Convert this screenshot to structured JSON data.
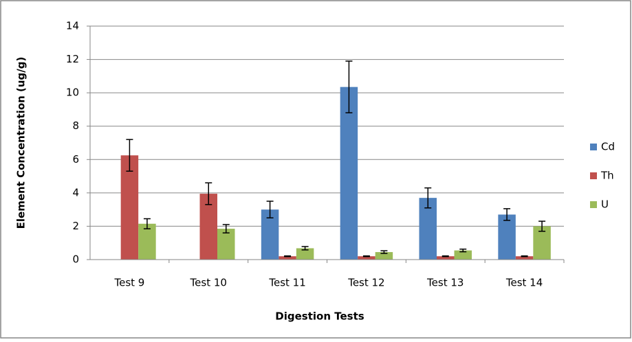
{
  "chart_data": {
    "type": "bar",
    "y_label": "Element Concentration (ug/g)",
    "x_label": "Digestion Tests",
    "categories": [
      "Test 9",
      "Test 10",
      "Test 11",
      "Test 12",
      "Test 13",
      "Test 14"
    ],
    "series": [
      {
        "name": "Cd",
        "color": "#4f81bd",
        "values": [
          null,
          null,
          3.0,
          10.35,
          3.7,
          2.7
        ],
        "errors": [
          null,
          null,
          0.5,
          1.55,
          0.6,
          0.35
        ]
      },
      {
        "name": "Th",
        "color": "#c0504d",
        "values": [
          6.25,
          3.95,
          0.2,
          0.2,
          0.2,
          0.2
        ],
        "errors": [
          0.95,
          0.65,
          0.02,
          0.02,
          0.02,
          0.02
        ]
      },
      {
        "name": "U",
        "color": "#9bbb59",
        "values": [
          2.15,
          1.85,
          0.68,
          0.45,
          0.55,
          2.0
        ],
        "errors": [
          0.3,
          0.25,
          0.1,
          0.08,
          0.08,
          0.3
        ]
      }
    ],
    "ylim": [
      0,
      14
    ],
    "yticks": [
      0,
      2,
      4,
      6,
      8,
      10,
      12,
      14
    ],
    "grid": true,
    "legend": "right"
  }
}
